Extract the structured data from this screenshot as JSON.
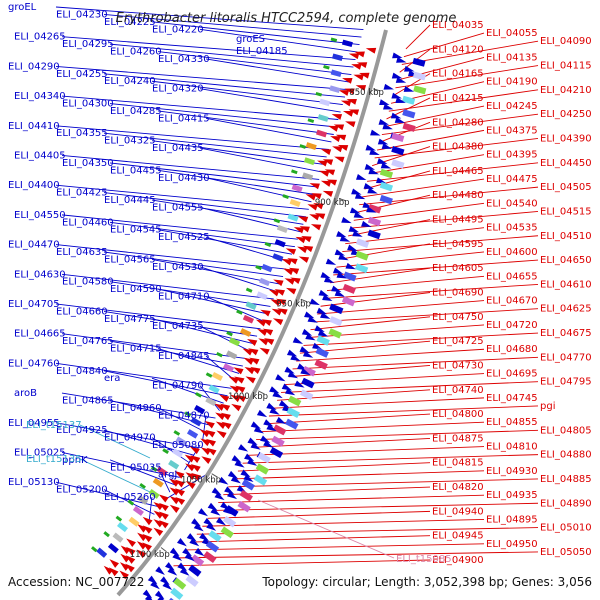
{
  "title": "Erythrobacter litoralis HTCC2594, complete genome",
  "accession": "Accession: NC_007722",
  "topology": "Topology: circular; Length: 3,052,398 bp; Genes: 3,056",
  "colors": {
    "forward": "#0000cc",
    "reverse": "#dd0000",
    "highlight": "#33aacc",
    "pink": "#dd88aa",
    "backbone": "#999999"
  },
  "ticks": [
    "850 kbp",
    "900 kbp",
    "950 kbp",
    "1000 kbp",
    "1050 kbp",
    "1100 kbp"
  ],
  "forward_labels": [
    "groEL",
    "ELI_04230",
    "ELI_04225",
    "ELI_04220",
    "ELI_04265",
    "ELI_04295",
    "ELI_04260",
    "ELI_04330",
    "ELI_04290",
    "ELI_04255",
    "ELI_04240",
    "ELI_04320",
    "ELI_04340",
    "ELI_04300",
    "ELI_04285",
    "ELI_04415",
    "ELI_04410",
    "ELI_04355",
    "ELI_04325",
    "ELI_04435",
    "ELI_04405",
    "ELI_04350",
    "ELI_04455",
    "ELI_04430",
    "ELI_04400",
    "ELI_04425",
    "ELI_04445",
    "ELI_04555",
    "ELI_04550",
    "ELI_04460",
    "ELI_04545",
    "ELI_04525",
    "ELI_04470",
    "ELI_04635",
    "ELI_04565",
    "ELI_04530",
    "ELI_04630",
    "ELI_04580",
    "ELI_04590",
    "ELI_04710",
    "ELI_04705",
    "ELI_04660",
    "ELI_04775",
    "ELI_04735",
    "ELI_04665",
    "ELI_04765",
    "ELI_04715",
    "ELI_04845",
    "ELI_04760",
    "ELI_04840",
    "era",
    "ELI_04790",
    "aroB",
    "ELI_04865",
    "ELI_04960",
    "ELI_04870",
    "ELI_04955",
    "ELI_04925",
    "ELI_04970",
    "ELI_05080",
    "ELI_05025",
    "ppnK",
    "ELI_05035",
    "argJ",
    "ELI_05130",
    "ELI_05200",
    "ELI_05260",
    "groES",
    "ELI_04185"
  ],
  "forward_highlight_labels": [
    "ELI_t15137",
    "ELI_t15135"
  ],
  "reverse_labels": [
    "ELI_04035",
    "ELI_04055",
    "ELI_04090",
    "ELI_04120",
    "ELI_04135",
    "ELI_04115",
    "ELI_04165",
    "ELI_04190",
    "ELI_04210",
    "ELI_04215",
    "ELI_04245",
    "ELI_04250",
    "ELI_04280",
    "ELI_04375",
    "ELI_04390",
    "ELI_04380",
    "ELI_04395",
    "ELI_04450",
    "ELI_04465",
    "ELI_04475",
    "ELI_04505",
    "ELI_04480",
    "ELI_04540",
    "ELI_04515",
    "ELI_04495",
    "ELI_04535",
    "ELI_04510",
    "ELI_04595",
    "ELI_04600",
    "ELI_04650",
    "ELI_04605",
    "ELI_04655",
    "ELI_04610",
    "ELI_04690",
    "ELI_04670",
    "ELI_04625",
    "ELI_04750",
    "ELI_04720",
    "ELI_04675",
    "ELI_04725",
    "ELI_04680",
    "ELI_04770",
    "ELI_04730",
    "ELI_04695",
    "ELI_04795",
    "ELI_04740",
    "ELI_04745",
    "pgi",
    "ELI_04800",
    "ELI_04855",
    "ELI_04805",
    "ELI_04875",
    "ELI_04810",
    "ELI_04880",
    "ELI_04815",
    "ELI_04930",
    "ELI_04885",
    "ELI_04820",
    "ELI_04935",
    "ELI_04890",
    "ELI_04940",
    "ELI_04895",
    "ELI_05010",
    "ELI_04945",
    "ELI_04950",
    "ELI_05050",
    "ELI_04900"
  ],
  "reverse_pink_labels": [
    "ELI_t15085"
  ]
}
